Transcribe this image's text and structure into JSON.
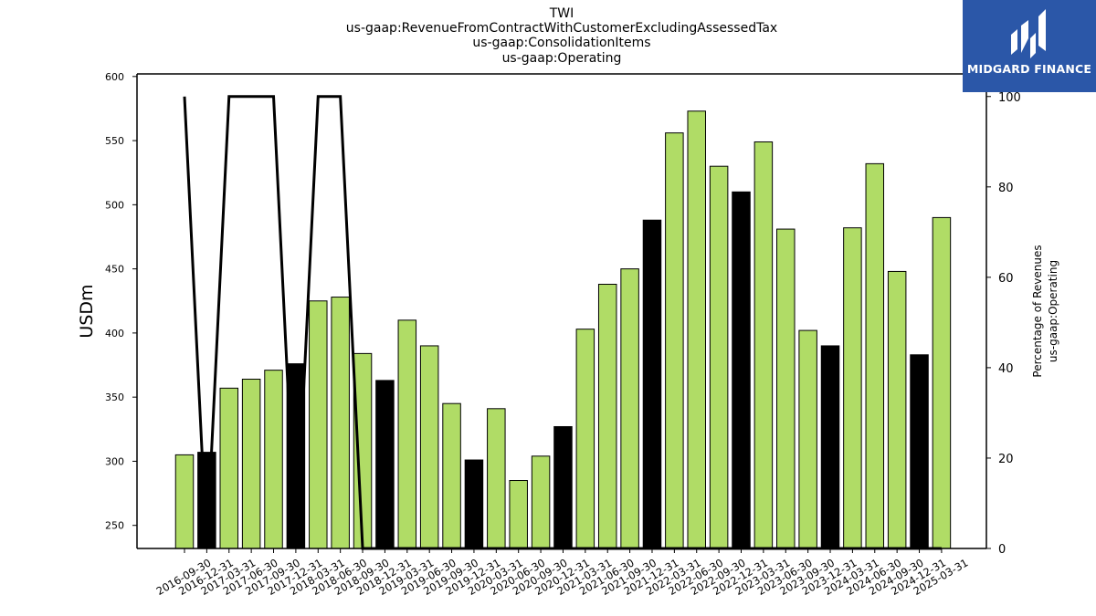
{
  "titles": [
    "TWI",
    "us-gaap:RevenueFromContractWithCustomerExcludingAssessedTax",
    "us-gaap:ConsolidationItems",
    "us-gaap:Operating"
  ],
  "logo": {
    "text": "MIDGARD FINANCE",
    "background": "#2b57a8"
  },
  "colors": {
    "bar_green": "#b0dc66",
    "bar_black": "#000000",
    "line": "#000000"
  },
  "chart_data": {
    "type": "bar",
    "categories": [
      "2016-09-30",
      "2016-12-31",
      "2017-03-31",
      "2017-06-30",
      "2017-09-30",
      "2017-12-31",
      "2018-03-31",
      "2018-06-30",
      "2018-09-30",
      "2018-12-31",
      "2019-03-31",
      "2019-06-30",
      "2019-09-30",
      "2019-12-31",
      "2020-03-31",
      "2020-06-30",
      "2020-09-30",
      "2020-12-31",
      "2021-03-31",
      "2021-06-30",
      "2021-09-30",
      "2021-12-31",
      "2022-03-31",
      "2022-06-30",
      "2022-09-30",
      "2022-12-31",
      "2023-03-31",
      "2023-06-30",
      "2023-09-30",
      "2023-12-31",
      "2024-03-31",
      "2024-06-30",
      "2024-09-30",
      "2024-12-31",
      "2025-03-31"
    ],
    "values": [
      305,
      307,
      357,
      364,
      371,
      376,
      425,
      428,
      384,
      363,
      410,
      390,
      345,
      301,
      341,
      285,
      304,
      327,
      403,
      438,
      450,
      488,
      556,
      573,
      530,
      510,
      549,
      481,
      402,
      390,
      482,
      532,
      448,
      383,
      490
    ],
    "bar_colors": [
      "green",
      "black",
      "green",
      "green",
      "green",
      "black",
      "green",
      "green",
      "green",
      "black",
      "green",
      "green",
      "green",
      "black",
      "green",
      "green",
      "green",
      "black",
      "green",
      "green",
      "green",
      "black",
      "green",
      "green",
      "green",
      "black",
      "green",
      "green",
      "green",
      "black",
      "green",
      "green",
      "green",
      "black",
      "green"
    ],
    "ylabel": "USDm",
    "ylim": [
      232,
      602
    ],
    "yticks": [
      250,
      300,
      350,
      400,
      450,
      500,
      550,
      600
    ],
    "y2label": [
      "Percentage of Revenues",
      "us-gaap:Operating"
    ],
    "y2lim": [
      0,
      105
    ],
    "y2ticks": [
      0,
      20,
      40,
      60,
      80,
      100
    ],
    "line_values": [
      100,
      0,
      100,
      100,
      100,
      0,
      100,
      100,
      0,
      0,
      0,
      0,
      0,
      0,
      0,
      0,
      0,
      0,
      0,
      0,
      0,
      0,
      0,
      0,
      0,
      0,
      0,
      0,
      0,
      0,
      0,
      0,
      0,
      0,
      0
    ],
    "grid": false
  }
}
